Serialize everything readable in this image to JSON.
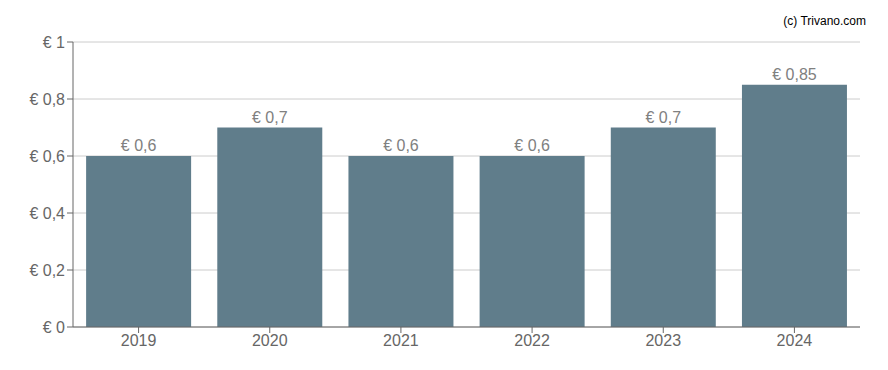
{
  "chart_data": {
    "type": "bar",
    "categories": [
      "2019",
      "2020",
      "2021",
      "2022",
      "2023",
      "2024"
    ],
    "values": [
      0.6,
      0.7,
      0.6,
      0.6,
      0.7,
      0.85
    ],
    "value_labels": [
      "€ 0,6",
      "€ 0,7",
      "€ 0,6",
      "€ 0,6",
      "€ 0,7",
      "€ 0,85"
    ],
    "data_labels": true,
    "color": "#607d8b",
    "ylim": [
      0,
      1.0
    ],
    "yticks": [
      {
        "value": 0,
        "label": "€ 0"
      },
      {
        "value": 0.2,
        "label": "€ 0,2"
      },
      {
        "value": 0.4,
        "label": "€ 0,4"
      },
      {
        "value": 0.6,
        "label": "€ 0,6"
      },
      {
        "value": 0.8,
        "label": "€ 0,8"
      },
      {
        "value": 1.0,
        "label": "€ 1"
      }
    ],
    "grid": true,
    "annotations": [
      "(c) Trivano.com"
    ]
  }
}
